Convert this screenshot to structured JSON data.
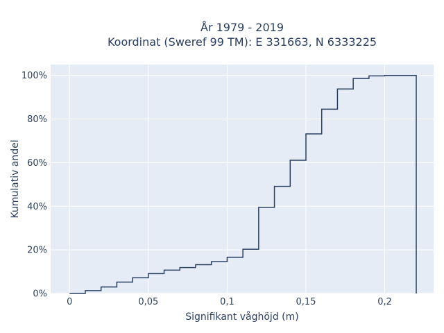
{
  "chart_data": {
    "type": "line",
    "title": "År 1979 - 2019",
    "subtitle": "Koordinat (Sweref 99 TM): E 331663, N 6333225",
    "xlabel": "Signifikant våghöjd (m)",
    "ylabel": "Kumulativ andel",
    "xlim": [
      -0.012,
      0.231
    ],
    "ylim": [
      0,
      1.05
    ],
    "x_ticks": [
      {
        "value": 0,
        "label": "0"
      },
      {
        "value": 0.05,
        "label": "0,05"
      },
      {
        "value": 0.1,
        "label": "0,1"
      },
      {
        "value": 0.15,
        "label": "0,15"
      },
      {
        "value": 0.2,
        "label": "0,2"
      }
    ],
    "y_ticks": [
      {
        "value": 0,
        "label": "0%"
      },
      {
        "value": 0.2,
        "label": "20%"
      },
      {
        "value": 0.4,
        "label": "40%"
      },
      {
        "value": 0.6,
        "label": "60%"
      },
      {
        "value": 0.8,
        "label": "80%"
      },
      {
        "value": 1.0,
        "label": "100%"
      }
    ],
    "grid": true,
    "line_shape": "step",
    "colors": {
      "plot_bg": "#e5ecf6",
      "line": "#2a3f5f",
      "grid": "#ffffff",
      "text": "#2a3f5f"
    },
    "series": [
      {
        "x": [
          0,
          0.01,
          0.02,
          0.03,
          0.04,
          0.05,
          0.06,
          0.07,
          0.08,
          0.09,
          0.1,
          0.11,
          0.12,
          0.13,
          0.14,
          0.15,
          0.16,
          0.17,
          0.18,
          0.19,
          0.2,
          0.22
        ],
        "y": [
          0.0,
          0.013,
          0.03,
          0.052,
          0.072,
          0.091,
          0.107,
          0.119,
          0.132,
          0.146,
          0.166,
          0.203,
          0.395,
          0.491,
          0.611,
          0.732,
          0.845,
          0.938,
          0.986,
          0.998,
          1.0,
          1.0
        ]
      }
    ]
  }
}
